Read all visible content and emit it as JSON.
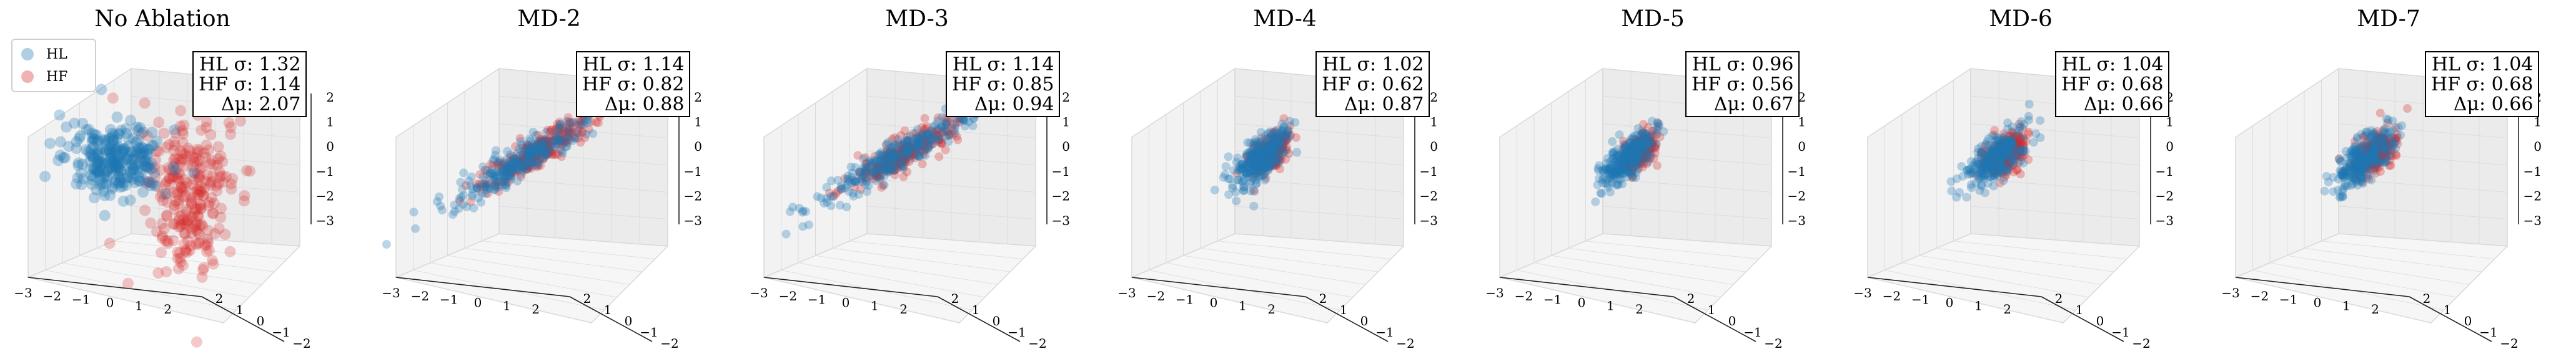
{
  "chart_data": {
    "type": "scatter",
    "subtype": "3d-scatter",
    "xlim": [
      -3,
      3
    ],
    "ylim": [
      -2,
      2
    ],
    "zlim": [
      -3.4,
      2.4
    ],
    "x_ticks": [
      -3,
      -2,
      -1,
      0,
      1,
      2
    ],
    "y_ticks": [
      -2,
      -1,
      0,
      1,
      2
    ],
    "z_ticks": [
      -3,
      -2,
      -1,
      0,
      1,
      2
    ],
    "grid": true,
    "legend": {
      "placement": "top-left",
      "entries": [
        {
          "label": "HL",
          "color": "#1f77b4"
        },
        {
          "label": "HF",
          "color": "#d62728"
        }
      ]
    },
    "colors": {
      "HL": "#1f77b4",
      "HF": "#d62728"
    },
    "panels": [
      {
        "title": "No Ablation",
        "hl_sigma": "1.32",
        "hf_sigma": "1.14",
        "delta_mu": "2.07",
        "show_legend": true
      },
      {
        "title": "MD-2",
        "hl_sigma": "1.14",
        "hf_sigma": "0.82",
        "delta_mu": "0.88",
        "show_legend": false
      },
      {
        "title": "MD-3",
        "hl_sigma": "1.14",
        "hf_sigma": "0.85",
        "delta_mu": "0.94",
        "show_legend": false
      },
      {
        "title": "MD-4",
        "hl_sigma": "1.02",
        "hf_sigma": "0.62",
        "delta_mu": "0.87",
        "show_legend": false
      },
      {
        "title": "MD-5",
        "hl_sigma": "0.96",
        "hf_sigma": "0.56",
        "delta_mu": "0.67",
        "show_legend": false
      },
      {
        "title": "MD-6",
        "hl_sigma": "1.04",
        "hf_sigma": "0.68",
        "delta_mu": "0.66",
        "show_legend": false
      },
      {
        "title": "MD-7",
        "hl_sigma": "1.04",
        "hf_sigma": "0.68",
        "delta_mu": "0.66",
        "show_legend": false
      }
    ],
    "stat_labels": {
      "hl": "HL σ: ",
      "hf": "HF σ: ",
      "dmu": "Δμ: "
    }
  }
}
